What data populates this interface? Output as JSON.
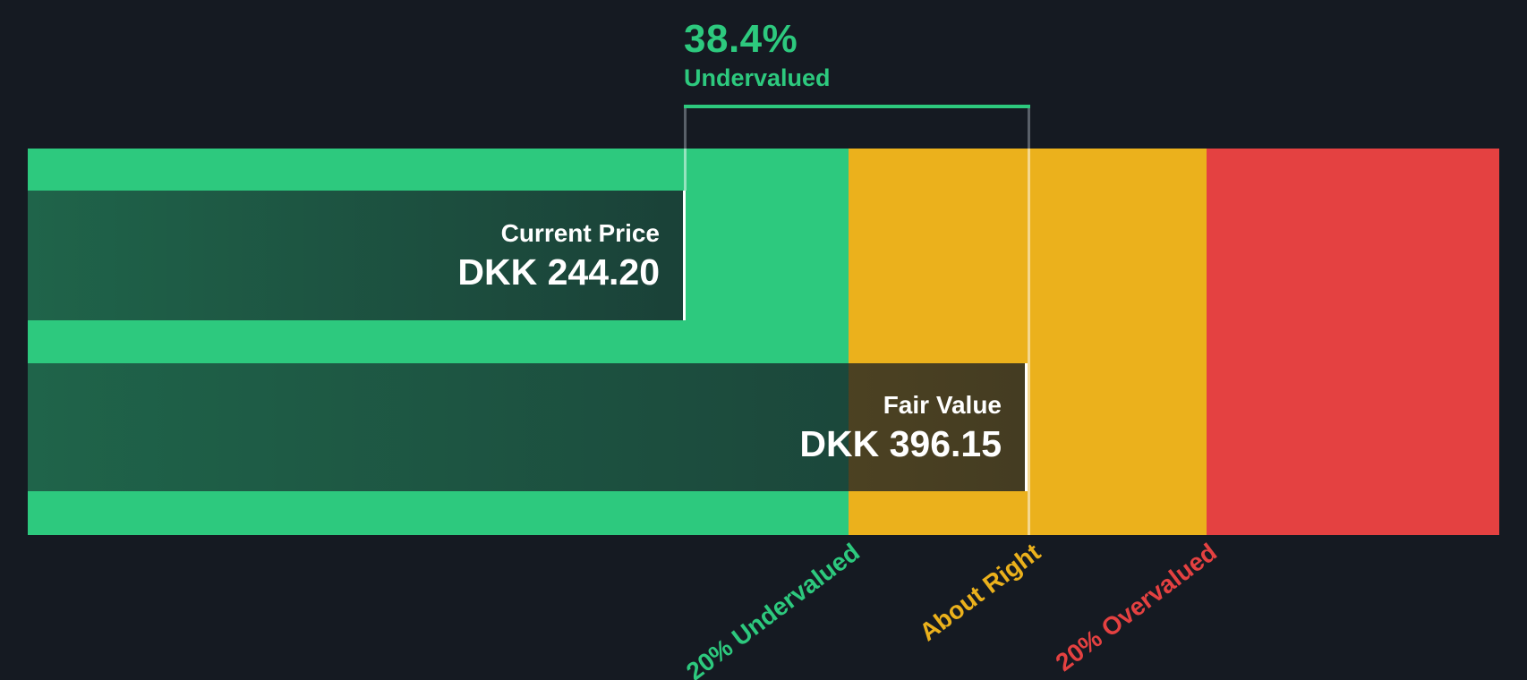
{
  "colors": {
    "background": "#151a22",
    "green": "#2dc97e",
    "amber": "#ebb11c",
    "red": "#e44141",
    "bracket_green": "#2dc97e",
    "bracket_gray": "#596069",
    "text_white": "#ffffff"
  },
  "annotation": {
    "discount": "38.4%",
    "label": "Undervalued"
  },
  "current_price": {
    "label": "Current Price",
    "value": "DKK 244.20"
  },
  "fair_value": {
    "label": "Fair Value",
    "value": "DKK 396.15"
  },
  "axis": {
    "undervalued": "20% Undervalued",
    "about_right": "About Right",
    "overvalued": "20% Overvalued"
  },
  "chart_data": {
    "type": "bar",
    "currency": "DKK",
    "series": [
      {
        "name": "Current Price",
        "value": 244.2
      },
      {
        "name": "Fair Value",
        "value": 396.15
      }
    ],
    "discount_pct": 38.4,
    "discount_direction": "Undervalued",
    "zones": [
      {
        "label": "20% Undervalued",
        "color": "#2dc97e",
        "price_range": [
          null,
          316.9
        ]
      },
      {
        "label": "About Right",
        "color": "#ebb11c",
        "price_range": [
          316.9,
          475.4
        ]
      },
      {
        "label": "20% Overvalued",
        "color": "#e44141",
        "price_range": [
          475.4,
          null
        ]
      }
    ],
    "markers": [
      {
        "name": "Current Price",
        "price": 244.2
      },
      {
        "name": "Fair Value",
        "price": 396.15
      }
    ],
    "legend_position": "bottom",
    "grid": false,
    "orientation": "horizontal"
  }
}
